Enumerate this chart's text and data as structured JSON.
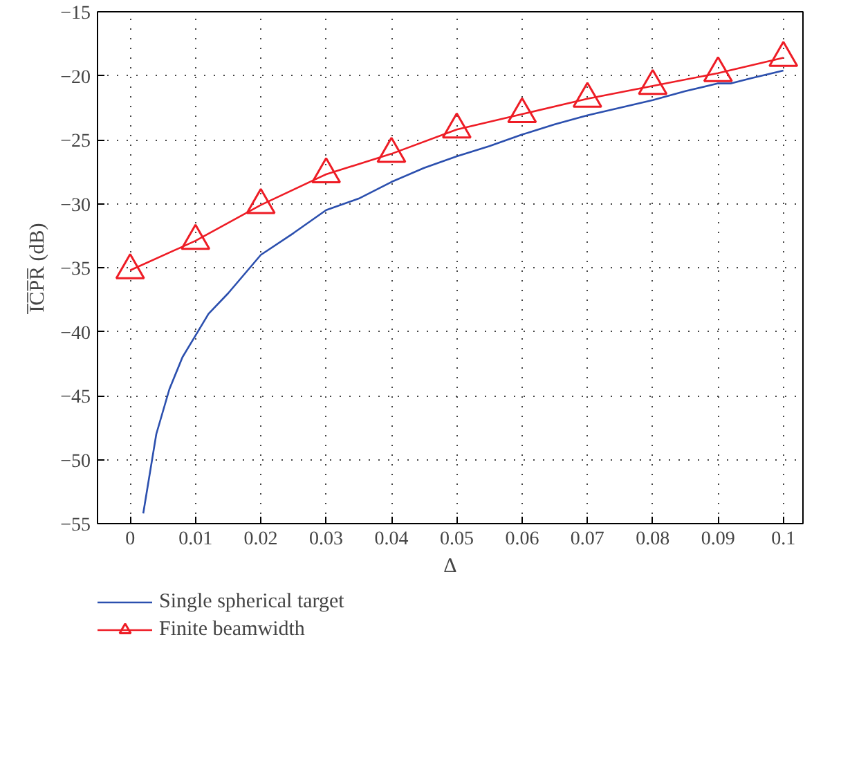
{
  "chart_data": {
    "type": "line",
    "xlabel": "Δ",
    "ylabel": "I̅C̅P̅R̅ (dB)",
    "xlim": [
      -0.005,
      0.103
    ],
    "ylim": [
      -55,
      -15
    ],
    "xticks": [
      0,
      0.01,
      0.02,
      0.03,
      0.04,
      0.05,
      0.06,
      0.07,
      0.08,
      0.09,
      0.1
    ],
    "yticks": [
      -55,
      -50,
      -45,
      -40,
      -35,
      -30,
      -25,
      -20,
      -15
    ],
    "grid": true,
    "legend": "bottom",
    "series": [
      {
        "name": "Single spherical target",
        "color": "#2b4fae",
        "marker": "none",
        "x": [
          0.002,
          0.004,
          0.006,
          0.008,
          0.01,
          0.012,
          0.015,
          0.02,
          0.025,
          0.03,
          0.035,
          0.04,
          0.045,
          0.05,
          0.055,
          0.06,
          0.065,
          0.07,
          0.075,
          0.08,
          0.085,
          0.09,
          0.092,
          0.095,
          0.1
        ],
        "values": [
          -54.2,
          -48,
          -44.5,
          -42,
          -40.3,
          -38.6,
          -37,
          -34,
          -32.3,
          -30.5,
          -29.6,
          -28.3,
          -27.2,
          -26.3,
          -25.5,
          -24.6,
          -23.8,
          -23.1,
          -22.5,
          -21.9,
          -21.2,
          -20.6,
          -20.6,
          -20.2,
          -19.6
        ]
      },
      {
        "name": "Finite beamwidth",
        "color": "#ee1c25",
        "marker": "triangle",
        "x": [
          0,
          0.01,
          0.02,
          0.03,
          0.04,
          0.05,
          0.06,
          0.07,
          0.08,
          0.09,
          0.1
        ],
        "values": [
          -35.2,
          -32.9,
          -30.1,
          -27.7,
          -26.1,
          -24.2,
          -23.0,
          -21.8,
          -20.8,
          -19.8,
          -18.6
        ]
      }
    ]
  }
}
